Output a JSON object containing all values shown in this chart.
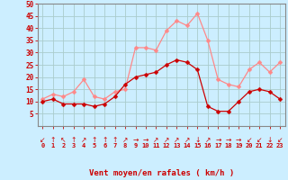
{
  "hours": [
    0,
    1,
    2,
    3,
    4,
    5,
    6,
    7,
    8,
    9,
    10,
    11,
    12,
    13,
    14,
    15,
    16,
    17,
    18,
    19,
    20,
    21,
    22,
    23
  ],
  "wind_avg": [
    10,
    11,
    9,
    9,
    9,
    8,
    9,
    12,
    17,
    20,
    21,
    22,
    25,
    27,
    26,
    23,
    8,
    6,
    6,
    10,
    14,
    15,
    14,
    11
  ],
  "wind_gust": [
    11,
    13,
    12,
    14,
    19,
    12,
    11,
    14,
    15,
    32,
    32,
    31,
    39,
    43,
    41,
    46,
    35,
    19,
    17,
    16,
    23,
    26,
    22,
    26
  ],
  "wind_dirs": [
    "↙",
    "↑",
    "↖",
    "↑",
    "↗",
    "↑",
    "↑",
    "↑",
    "↗",
    "→",
    "→",
    "↗",
    "↗",
    "↗",
    "↗",
    "↓",
    "↗",
    "→",
    "→",
    "→",
    "↙",
    "↙",
    "↓",
    "↙"
  ],
  "bg_color": "#cceeff",
  "grid_color": "#aacccc",
  "line_avg_color": "#cc0000",
  "line_gust_color": "#ff8888",
  "marker_avg_color": "#cc0000",
  "marker_gust_color": "#ff8888",
  "marker_size": 2.5,
  "ylim": [
    0,
    50
  ],
  "yticks": [
    5,
    10,
    15,
    20,
    25,
    30,
    35,
    40,
    45,
    50
  ],
  "xlabel": "Vent moyen/en rafales ( km/h )",
  "xlabel_color": "#cc0000",
  "tick_color": "#cc0000",
  "spine_color": "#888888",
  "arrow_color": "#cc0000"
}
